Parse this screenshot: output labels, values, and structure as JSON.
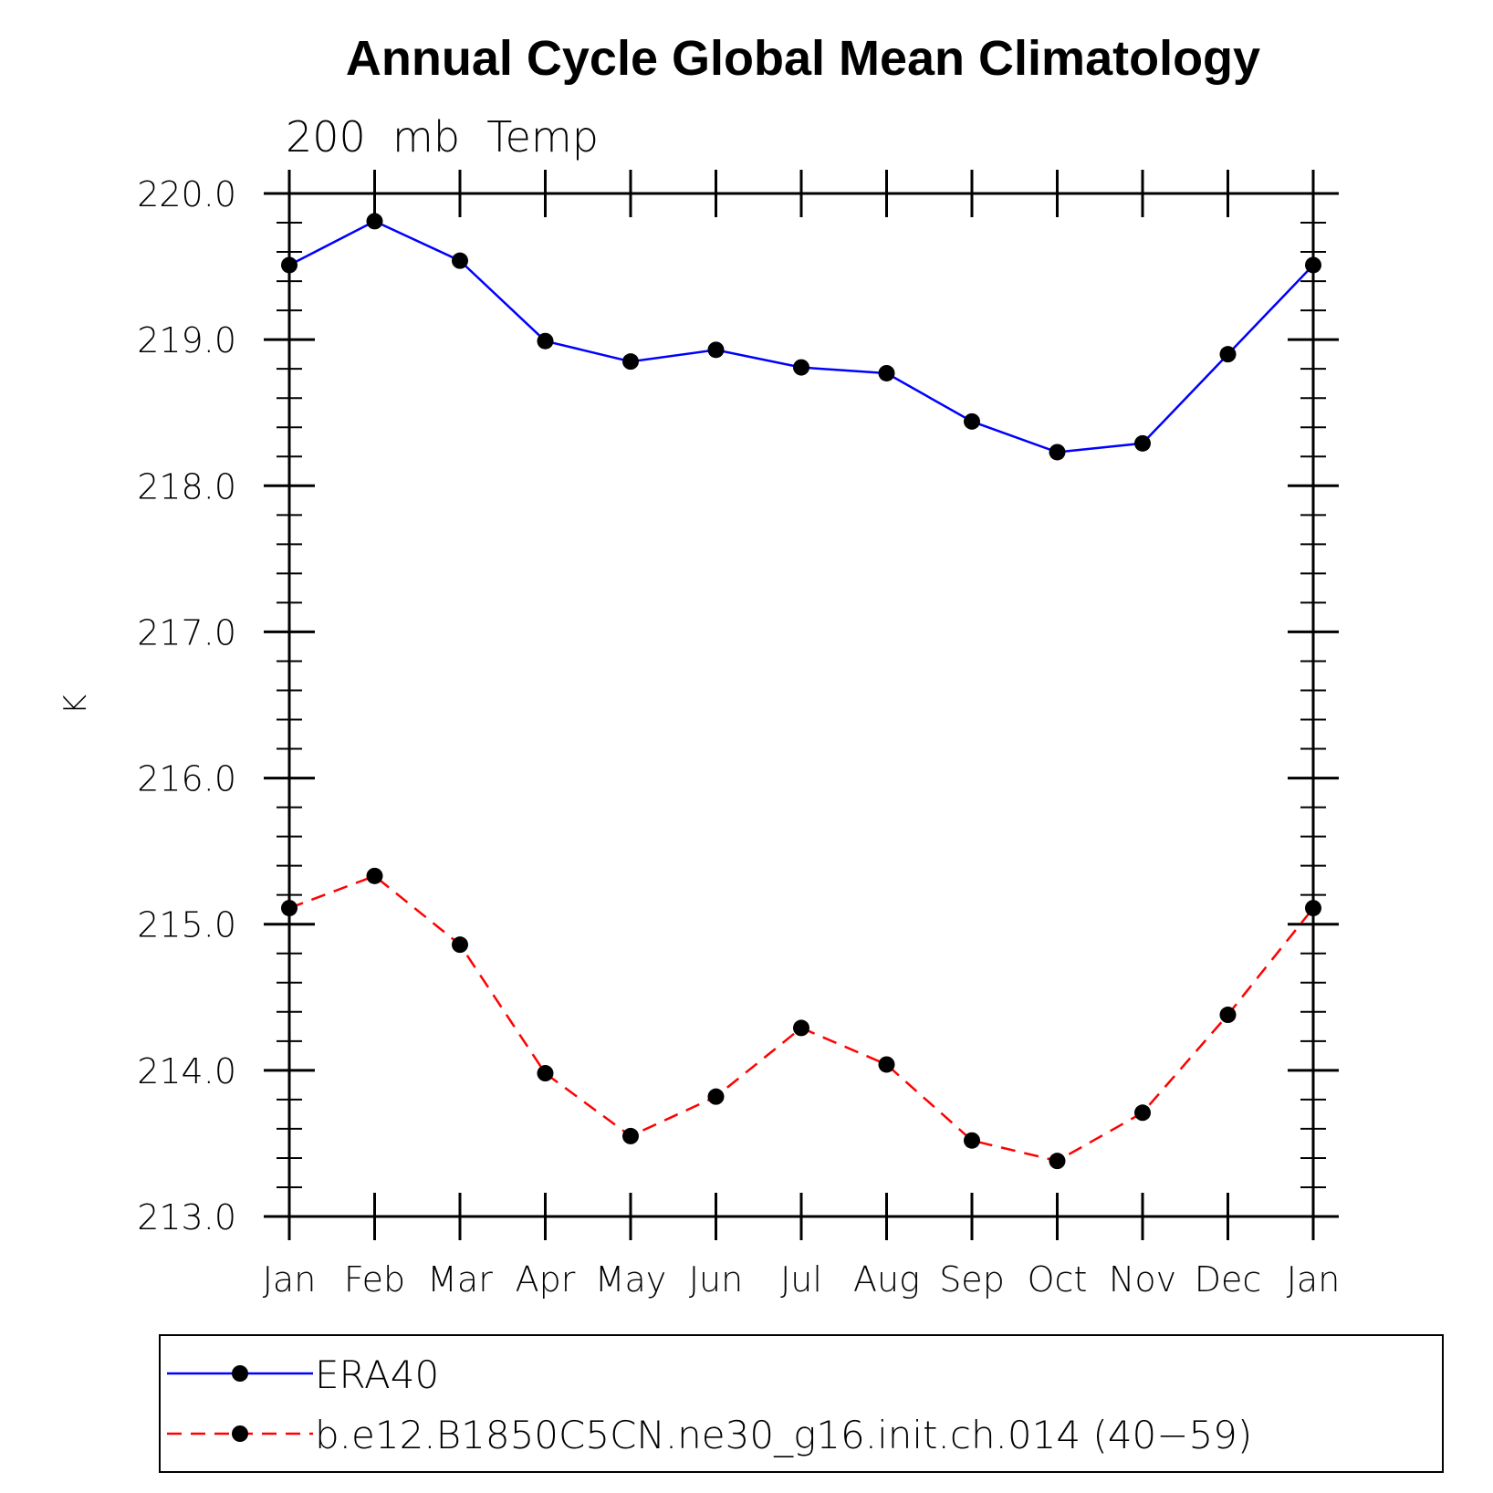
{
  "chart_data": {
    "type": "line",
    "title": "Annual Cycle Global Mean Climatology",
    "subtitle": "200  mb  Temp",
    "xlabel": "",
    "ylabel": "K",
    "categories": [
      "Jan",
      "Feb",
      "Mar",
      "Apr",
      "May",
      "Jun",
      "Jul",
      "Aug",
      "Sep",
      "Oct",
      "Nov",
      "Dec",
      "Jan"
    ],
    "ylim": [
      213.0,
      220.0
    ],
    "yticks": [
      "213.0",
      "214.0",
      "215.0",
      "216.0",
      "217.0",
      "218.0",
      "219.0",
      "220.0"
    ],
    "grid": false,
    "legend_position": "bottom",
    "series": [
      {
        "name": "ERA40",
        "color": "#0000ff",
        "line_style": "solid",
        "marker": "filled-circle",
        "values": [
          219.51,
          219.81,
          219.54,
          218.99,
          218.85,
          218.93,
          218.81,
          218.77,
          218.44,
          218.23,
          218.29,
          218.9,
          219.51
        ]
      },
      {
        "name": "b.e12.B1850C5CN.ne30_g16.init.ch.014 (40−59)",
        "color": "#ff0000",
        "line_style": "dashed",
        "marker": "filled-circle",
        "values": [
          215.11,
          215.33,
          214.86,
          213.98,
          213.55,
          213.82,
          214.29,
          214.04,
          213.52,
          213.38,
          213.71,
          214.38,
          215.11
        ]
      }
    ]
  }
}
